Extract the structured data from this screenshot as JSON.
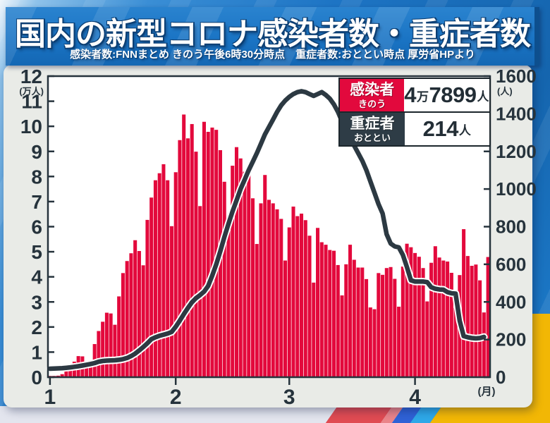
{
  "banner": {
    "title": "国内の新型コロナ感染者数・重症者数",
    "subtitle": "感染者数:FNNまとめ きのう午後6時30分時点　重症者数:おととい時点 厚労省HPより"
  },
  "legend": {
    "rows": [
      {
        "label": "感染者",
        "sublabel": "きのう",
        "value": "4万7899人",
        "key_bg": "#e2093d"
      },
      {
        "label": "重症者",
        "sublabel": "おととい",
        "value": "214人",
        "key_bg": "#2e3c46"
      }
    ]
  },
  "chart_data": {
    "type": "bar+line",
    "title": "国内の新型コロナ感染者数・重症者数",
    "x_axis": {
      "tick_labels": [
        "1",
        "2",
        "3",
        "4"
      ],
      "tick_day_indices": [
        0,
        31,
        59,
        90
      ],
      "unit_label": "(月)"
    },
    "left_axis": {
      "unit_label": "(万人)",
      "min": 0,
      "max": 12,
      "tick_step": 1,
      "applies_to": "感染者数 bars"
    },
    "right_axis": {
      "unit_label": "(人)",
      "min": 0,
      "max": 1600,
      "tick_step": 200,
      "applies_to": "重症者数 line"
    },
    "series": [
      {
        "name": "感染者数",
        "type": "bar",
        "axis": "left",
        "unit": "万人",
        "color": "#e3093c",
        "start": "1月1日",
        "daily_values": [
          0.05,
          0.05,
          0.06,
          0.12,
          0.26,
          0.46,
          0.62,
          0.84,
          0.83,
          0.6,
          0.63,
          1.32,
          1.84,
          2.21,
          2.57,
          2.54,
          2.09,
          3.22,
          4.15,
          4.63,
          4.94,
          5.46,
          5.03,
          4.46,
          6.27,
          7.16,
          7.85,
          8.13,
          8.49,
          7.85,
          6.02,
          8.17,
          9.45,
          10.47,
          9.52,
          10.09,
          8.99,
          6.82,
          10.18,
          9.78,
          9.95,
          9.86,
          9.05,
          7.79,
          6.03,
          8.43,
          9.17,
          8.72,
          8.19,
          8.16,
          7.13,
          5.31,
          6.93,
          8.06,
          7.07,
          6.93,
          6.69,
          6.31,
          4.65,
          5.97,
          6.8,
          6.42,
          6.52,
          6.26,
          5.64,
          3.77,
          5.95,
          5.38,
          5.28,
          5.07,
          5.04,
          4.47,
          3.26,
          4.5,
          5.28,
          4.68,
          4.37,
          4.37,
          3.91,
          2.78,
          2.71,
          4.15,
          4.08,
          4.35,
          4.39,
          3.92,
          2.81,
          4.41,
          5.32,
          5.18,
          4.95,
          4.8,
          4.35,
          3.02,
          4.56,
          5.22,
          4.77,
          4.65,
          4.61,
          4.16,
          2.76,
          4.07,
          5.9,
          4.83,
          4.44,
          4.49,
          3.86,
          2.58,
          4.79
        ]
      },
      {
        "name": "重症者数",
        "type": "line",
        "axis": "right",
        "unit": "人",
        "color": "#2c3942",
        "start": "1月1日",
        "daily_values": [
          45,
          46,
          47,
          48,
          50,
          52,
          55,
          58,
          62,
          66,
          70,
          75,
          82,
          86,
          88,
          89,
          90,
          92,
          96,
          102,
          112,
          125,
          142,
          160,
          180,
          202,
          212,
          220,
          226,
          232,
          240,
          268,
          300,
          335,
          368,
          398,
          420,
          436,
          455,
          485,
          540,
          600,
          670,
          745,
          815,
          880,
          940,
          1000,
          1050,
          1100,
          1145,
          1190,
          1240,
          1290,
          1330,
          1370,
          1410,
          1445,
          1470,
          1490,
          1505,
          1515,
          1520,
          1515,
          1505,
          1495,
          1505,
          1515,
          1500,
          1480,
          1450,
          1410,
          1360,
          1310,
          1270,
          1230,
          1190,
          1150,
          1100,
          1040,
          980,
          920,
          870,
          760,
          710,
          695,
          690,
          650,
          585,
          515,
          508,
          508,
          508,
          505,
          478,
          470,
          466,
          465,
          452,
          446,
          444,
          300,
          218,
          212,
          208,
          206,
          208,
          214
        ]
      }
    ]
  },
  "colors": {
    "banner_blue": "#1a74c4",
    "bar_red": "#e3093c",
    "line_dark": "#2c3942",
    "panel_gray": "#e9ebe7",
    "axis_text": "#26333c",
    "accent_yellow": "#f2b705",
    "accent_sky": "#2ea8e8",
    "accent_blue": "#2f62d6",
    "accent_red": "#e04b52"
  }
}
